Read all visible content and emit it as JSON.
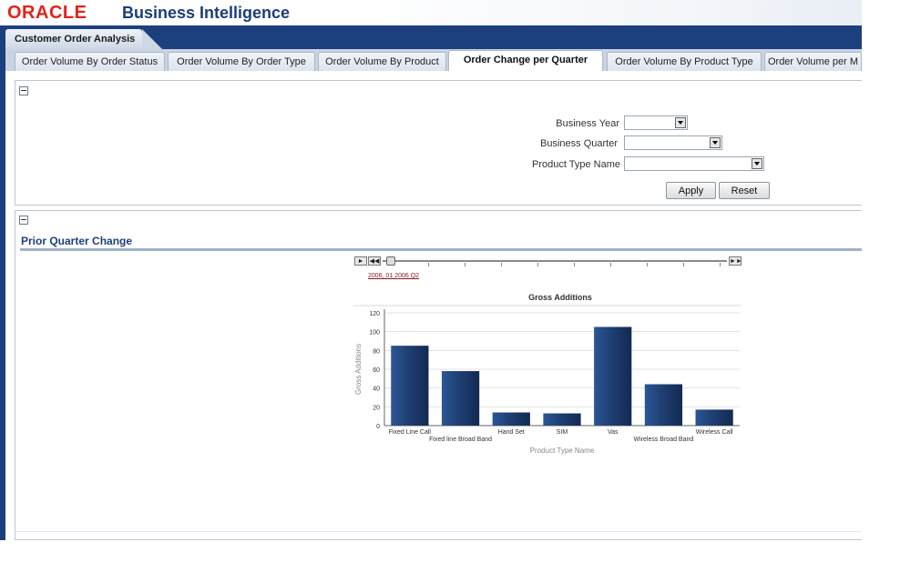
{
  "header": {
    "logo": "ORACLE",
    "product": "Business Intelligence"
  },
  "dashboard": {
    "name": "Customer Order Analysis"
  },
  "tabs": [
    {
      "label": "Order Volume By Order Status",
      "active": false
    },
    {
      "label": "Order Volume By Order Type",
      "active": false
    },
    {
      "label": "Order Volume By Product",
      "active": false
    },
    {
      "label": "Order Change per Quarter",
      "active": true
    },
    {
      "label": "Order Volume By Product Type",
      "active": false
    },
    {
      "label": "Order Volume per M",
      "active": false
    }
  ],
  "prompts": {
    "business_year": {
      "label": "Business Year",
      "value": ""
    },
    "business_quarter": {
      "label": "Business Quarter",
      "value": ""
    },
    "product_type_name": {
      "label": "Product Type Name",
      "value": ""
    },
    "apply_label": "Apply",
    "reset_label": "Reset"
  },
  "section": {
    "title": "Prior Quarter Change"
  },
  "slider": {
    "label": "2006, 01 2006 Q2"
  },
  "chart_data": {
    "type": "bar",
    "title": "Gross Additions",
    "xlabel": "Product Type Name",
    "ylabel": "Gross Additions",
    "ylim": [
      0,
      120
    ],
    "yticks": [
      0,
      20,
      40,
      60,
      80,
      100,
      120
    ],
    "grid": true,
    "categories": [
      "Fixed Line Call",
      "Fixed line Broad Band",
      "Hand Set",
      "SIM",
      "Vas",
      "Wireless Broad Band",
      "Wireless Call"
    ],
    "values": [
      85,
      58,
      14,
      13,
      105,
      44,
      17
    ],
    "bar_color": "#1f3f73"
  }
}
